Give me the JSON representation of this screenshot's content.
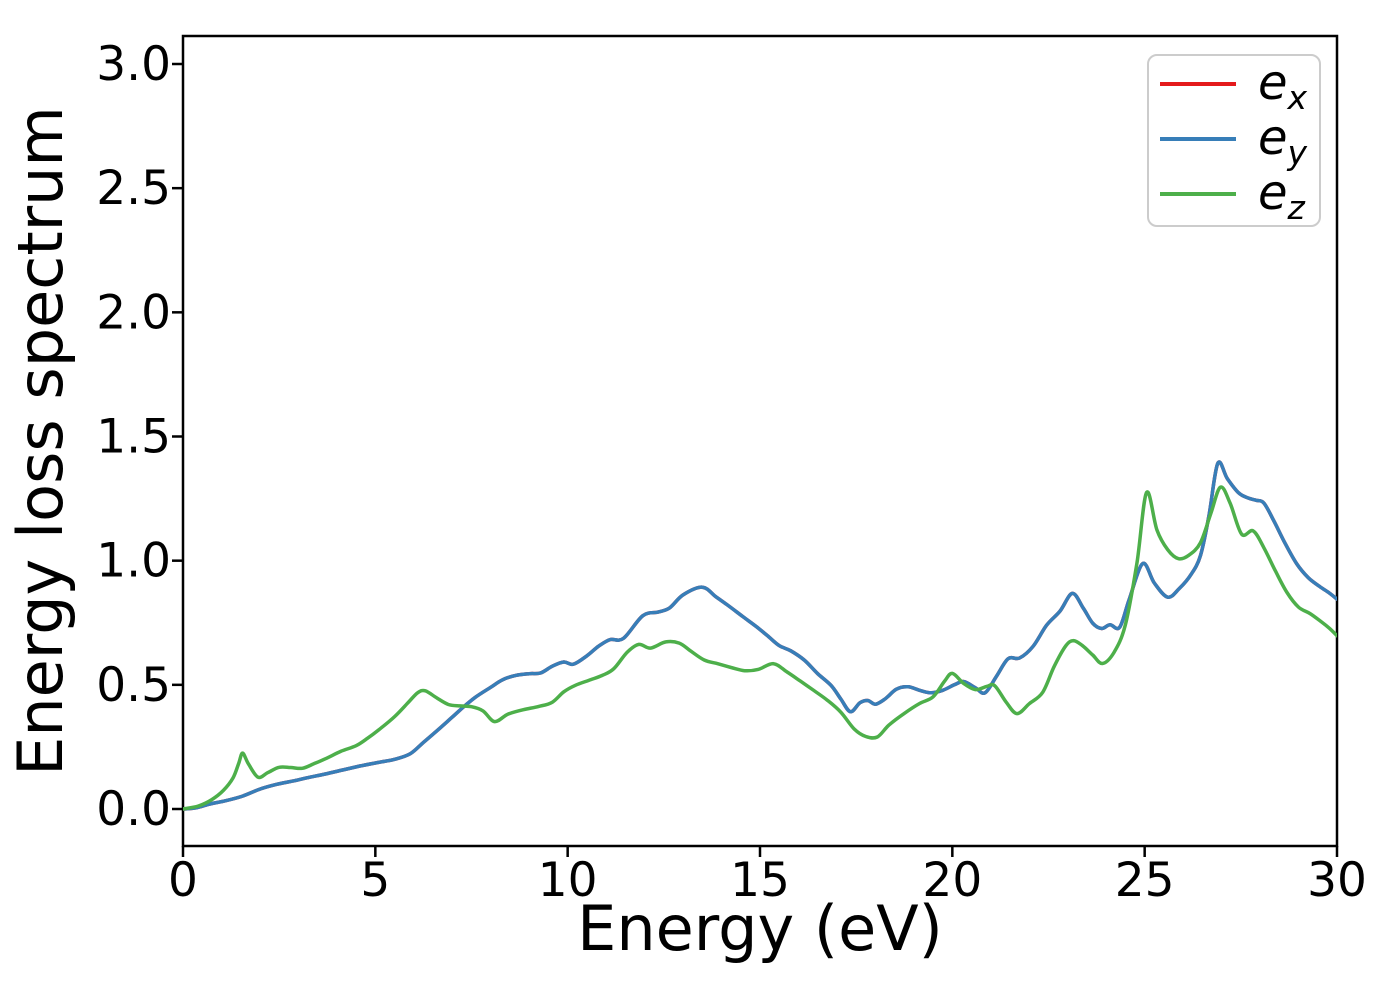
{
  "window": {
    "background": "#ffffff"
  },
  "chart_data": {
    "type": "line",
    "title": "",
    "xlabel": "Energy (eV)",
    "ylabel": "Energy loss spectrum",
    "xlim": [
      0,
      30
    ],
    "ylim": [
      -0.15,
      3.11
    ],
    "xticks": [
      0,
      5,
      10,
      15,
      20,
      25,
      30
    ],
    "yticks": [
      0.0,
      0.5,
      1.0,
      1.5,
      2.0,
      2.5,
      3.0
    ],
    "ytick_labels": [
      "0.0",
      "0.5",
      "1.0",
      "1.5",
      "2.0",
      "2.5",
      "3.0"
    ],
    "grid": false,
    "legend": {
      "position": "upper right",
      "entries": [
        {
          "base": "e",
          "sub": "x",
          "color": "#e41a1c"
        },
        {
          "base": "e",
          "sub": "y",
          "color": "#377eb8"
        },
        {
          "base": "e",
          "sub": "z",
          "color": "#4daf4a"
        }
      ]
    },
    "series": [
      {
        "name": "e_x",
        "color": "#e41a1c",
        "note": "coincides with e_y and is hidden beneath it in the plot",
        "points": [
          [
            0,
            0
          ],
          [
            0.35,
            0.005
          ],
          [
            0.7,
            0.02
          ],
          [
            1.1,
            0.033
          ],
          [
            1.55,
            0.052
          ],
          [
            2.0,
            0.08
          ],
          [
            2.45,
            0.1
          ],
          [
            2.9,
            0.114
          ],
          [
            3.3,
            0.128
          ],
          [
            3.7,
            0.141
          ],
          [
            4.15,
            0.157
          ],
          [
            4.6,
            0.173
          ],
          [
            5.05,
            0.187
          ],
          [
            5.5,
            0.2
          ],
          [
            5.9,
            0.222
          ],
          [
            6.25,
            0.268
          ],
          [
            6.6,
            0.315
          ],
          [
            7.0,
            0.37
          ],
          [
            7.3,
            0.412
          ],
          [
            7.6,
            0.45
          ],
          [
            8.0,
            0.49
          ],
          [
            8.3,
            0.52
          ],
          [
            8.65,
            0.538
          ],
          [
            9.0,
            0.545
          ],
          [
            9.3,
            0.548
          ],
          [
            9.6,
            0.575
          ],
          [
            9.9,
            0.592
          ],
          [
            10.15,
            0.583
          ],
          [
            10.5,
            0.617
          ],
          [
            10.8,
            0.655
          ],
          [
            11.1,
            0.682
          ],
          [
            11.45,
            0.687
          ],
          [
            11.95,
            0.778
          ],
          [
            12.35,
            0.793
          ],
          [
            12.65,
            0.81
          ],
          [
            13.0,
            0.862
          ],
          [
            13.5,
            0.893
          ],
          [
            13.85,
            0.855
          ],
          [
            14.15,
            0.822
          ],
          [
            14.55,
            0.775
          ],
          [
            14.9,
            0.735
          ],
          [
            15.2,
            0.697
          ],
          [
            15.5,
            0.658
          ],
          [
            15.8,
            0.637
          ],
          [
            16.15,
            0.6
          ],
          [
            16.5,
            0.545
          ],
          [
            16.85,
            0.497
          ],
          [
            17.1,
            0.443
          ],
          [
            17.35,
            0.392
          ],
          [
            17.6,
            0.428
          ],
          [
            17.8,
            0.437
          ],
          [
            18.0,
            0.422
          ],
          [
            18.25,
            0.443
          ],
          [
            18.55,
            0.483
          ],
          [
            18.85,
            0.492
          ],
          [
            19.15,
            0.478
          ],
          [
            19.45,
            0.468
          ],
          [
            19.75,
            0.478
          ],
          [
            20.05,
            0.5
          ],
          [
            20.3,
            0.513
          ],
          [
            20.6,
            0.488
          ],
          [
            20.85,
            0.468
          ],
          [
            21.15,
            0.535
          ],
          [
            21.45,
            0.605
          ],
          [
            21.75,
            0.608
          ],
          [
            22.1,
            0.655
          ],
          [
            22.45,
            0.74
          ],
          [
            22.8,
            0.797
          ],
          [
            23.12,
            0.868
          ],
          [
            23.4,
            0.81
          ],
          [
            23.65,
            0.748
          ],
          [
            23.88,
            0.727
          ],
          [
            24.1,
            0.742
          ],
          [
            24.35,
            0.732
          ],
          [
            24.6,
            0.845
          ],
          [
            24.95,
            0.988
          ],
          [
            25.25,
            0.91
          ],
          [
            25.6,
            0.853
          ],
          [
            25.9,
            0.888
          ],
          [
            26.2,
            0.943
          ],
          [
            26.45,
            1.02
          ],
          [
            26.67,
            1.18
          ],
          [
            26.9,
            1.392
          ],
          [
            27.15,
            1.33
          ],
          [
            27.45,
            1.272
          ],
          [
            27.7,
            1.252
          ],
          [
            27.9,
            1.243
          ],
          [
            28.1,
            1.232
          ],
          [
            28.35,
            1.163
          ],
          [
            28.65,
            1.07
          ],
          [
            28.95,
            0.988
          ],
          [
            29.25,
            0.932
          ],
          [
            29.55,
            0.896
          ],
          [
            29.8,
            0.87
          ],
          [
            30,
            0.845
          ]
        ]
      },
      {
        "name": "e_y",
        "color": "#377eb8",
        "points": [
          [
            0,
            0
          ],
          [
            0.35,
            0.005
          ],
          [
            0.7,
            0.02
          ],
          [
            1.1,
            0.033
          ],
          [
            1.55,
            0.052
          ],
          [
            2.0,
            0.08
          ],
          [
            2.45,
            0.1
          ],
          [
            2.9,
            0.114
          ],
          [
            3.3,
            0.128
          ],
          [
            3.7,
            0.141
          ],
          [
            4.15,
            0.157
          ],
          [
            4.6,
            0.173
          ],
          [
            5.05,
            0.187
          ],
          [
            5.5,
            0.2
          ],
          [
            5.9,
            0.222
          ],
          [
            6.25,
            0.268
          ],
          [
            6.6,
            0.315
          ],
          [
            7.0,
            0.37
          ],
          [
            7.3,
            0.412
          ],
          [
            7.6,
            0.45
          ],
          [
            8.0,
            0.49
          ],
          [
            8.3,
            0.52
          ],
          [
            8.65,
            0.538
          ],
          [
            9.0,
            0.545
          ],
          [
            9.3,
            0.548
          ],
          [
            9.6,
            0.575
          ],
          [
            9.9,
            0.592
          ],
          [
            10.15,
            0.583
          ],
          [
            10.5,
            0.617
          ],
          [
            10.8,
            0.655
          ],
          [
            11.1,
            0.682
          ],
          [
            11.45,
            0.687
          ],
          [
            11.95,
            0.778
          ],
          [
            12.35,
            0.793
          ],
          [
            12.65,
            0.81
          ],
          [
            13.0,
            0.862
          ],
          [
            13.5,
            0.893
          ],
          [
            13.85,
            0.855
          ],
          [
            14.15,
            0.822
          ],
          [
            14.55,
            0.775
          ],
          [
            14.9,
            0.735
          ],
          [
            15.2,
            0.697
          ],
          [
            15.5,
            0.658
          ],
          [
            15.8,
            0.637
          ],
          [
            16.15,
            0.6
          ],
          [
            16.5,
            0.545
          ],
          [
            16.85,
            0.497
          ],
          [
            17.1,
            0.443
          ],
          [
            17.35,
            0.392
          ],
          [
            17.6,
            0.428
          ],
          [
            17.8,
            0.437
          ],
          [
            18.0,
            0.422
          ],
          [
            18.25,
            0.443
          ],
          [
            18.55,
            0.483
          ],
          [
            18.85,
            0.492
          ],
          [
            19.15,
            0.478
          ],
          [
            19.45,
            0.468
          ],
          [
            19.75,
            0.478
          ],
          [
            20.05,
            0.5
          ],
          [
            20.3,
            0.513
          ],
          [
            20.6,
            0.488
          ],
          [
            20.85,
            0.468
          ],
          [
            21.15,
            0.535
          ],
          [
            21.45,
            0.605
          ],
          [
            21.75,
            0.608
          ],
          [
            22.1,
            0.655
          ],
          [
            22.45,
            0.74
          ],
          [
            22.8,
            0.797
          ],
          [
            23.12,
            0.868
          ],
          [
            23.4,
            0.81
          ],
          [
            23.65,
            0.748
          ],
          [
            23.88,
            0.727
          ],
          [
            24.1,
            0.742
          ],
          [
            24.35,
            0.732
          ],
          [
            24.6,
            0.845
          ],
          [
            24.95,
            0.988
          ],
          [
            25.25,
            0.91
          ],
          [
            25.6,
            0.853
          ],
          [
            25.9,
            0.888
          ],
          [
            26.2,
            0.943
          ],
          [
            26.45,
            1.02
          ],
          [
            26.67,
            1.18
          ],
          [
            26.9,
            1.392
          ],
          [
            27.15,
            1.33
          ],
          [
            27.45,
            1.272
          ],
          [
            27.7,
            1.252
          ],
          [
            27.9,
            1.243
          ],
          [
            28.1,
            1.232
          ],
          [
            28.35,
            1.163
          ],
          [
            28.65,
            1.07
          ],
          [
            28.95,
            0.988
          ],
          [
            29.25,
            0.932
          ],
          [
            29.55,
            0.896
          ],
          [
            29.8,
            0.87
          ],
          [
            30,
            0.845
          ]
        ]
      },
      {
        "name": "e_z",
        "color": "#4daf4a",
        "points": [
          [
            0,
            0
          ],
          [
            0.4,
            0.012
          ],
          [
            0.75,
            0.038
          ],
          [
            1.05,
            0.075
          ],
          [
            1.3,
            0.125
          ],
          [
            1.45,
            0.185
          ],
          [
            1.55,
            0.225
          ],
          [
            1.7,
            0.182
          ],
          [
            1.95,
            0.128
          ],
          [
            2.2,
            0.146
          ],
          [
            2.5,
            0.168
          ],
          [
            2.8,
            0.167
          ],
          [
            3.1,
            0.164
          ],
          [
            3.4,
            0.182
          ],
          [
            3.7,
            0.202
          ],
          [
            4.1,
            0.232
          ],
          [
            4.5,
            0.255
          ],
          [
            4.8,
            0.285
          ],
          [
            5.1,
            0.32
          ],
          [
            5.5,
            0.372
          ],
          [
            5.85,
            0.428
          ],
          [
            6.1,
            0.468
          ],
          [
            6.3,
            0.476
          ],
          [
            6.6,
            0.447
          ],
          [
            6.9,
            0.421
          ],
          [
            7.2,
            0.415
          ],
          [
            7.5,
            0.412
          ],
          [
            7.8,
            0.395
          ],
          [
            8.1,
            0.352
          ],
          [
            8.45,
            0.382
          ],
          [
            8.85,
            0.4
          ],
          [
            9.25,
            0.413
          ],
          [
            9.6,
            0.43
          ],
          [
            9.9,
            0.472
          ],
          [
            10.2,
            0.498
          ],
          [
            10.55,
            0.518
          ],
          [
            10.9,
            0.538
          ],
          [
            11.2,
            0.565
          ],
          [
            11.55,
            0.632
          ],
          [
            11.85,
            0.663
          ],
          [
            12.15,
            0.648
          ],
          [
            12.55,
            0.673
          ],
          [
            12.9,
            0.668
          ],
          [
            13.2,
            0.636
          ],
          [
            13.55,
            0.6
          ],
          [
            13.9,
            0.585
          ],
          [
            14.25,
            0.57
          ],
          [
            14.6,
            0.557
          ],
          [
            14.95,
            0.562
          ],
          [
            15.35,
            0.585
          ],
          [
            15.7,
            0.552
          ],
          [
            16.05,
            0.515
          ],
          [
            16.4,
            0.477
          ],
          [
            16.75,
            0.438
          ],
          [
            17.1,
            0.39
          ],
          [
            17.45,
            0.322
          ],
          [
            17.75,
            0.292
          ],
          [
            18.05,
            0.29
          ],
          [
            18.35,
            0.338
          ],
          [
            18.75,
            0.385
          ],
          [
            19.15,
            0.425
          ],
          [
            19.5,
            0.452
          ],
          [
            19.8,
            0.515
          ],
          [
            20.0,
            0.546
          ],
          [
            20.3,
            0.505
          ],
          [
            20.6,
            0.481
          ],
          [
            20.9,
            0.494
          ],
          [
            21.1,
            0.497
          ],
          [
            21.4,
            0.43
          ],
          [
            21.68,
            0.384
          ],
          [
            22.0,
            0.424
          ],
          [
            22.35,
            0.47
          ],
          [
            22.65,
            0.575
          ],
          [
            22.95,
            0.657
          ],
          [
            23.15,
            0.678
          ],
          [
            23.38,
            0.658
          ],
          [
            23.65,
            0.62
          ],
          [
            23.9,
            0.586
          ],
          [
            24.2,
            0.63
          ],
          [
            24.5,
            0.742
          ],
          [
            24.8,
            0.992
          ],
          [
            25.05,
            1.275
          ],
          [
            25.32,
            1.123
          ],
          [
            25.6,
            1.044
          ],
          [
            25.88,
            1.008
          ],
          [
            26.15,
            1.022
          ],
          [
            26.45,
            1.072
          ],
          [
            26.72,
            1.19
          ],
          [
            26.97,
            1.296
          ],
          [
            27.22,
            1.232
          ],
          [
            27.52,
            1.107
          ],
          [
            27.82,
            1.12
          ],
          [
            28.1,
            1.052
          ],
          [
            28.4,
            0.958
          ],
          [
            28.7,
            0.872
          ],
          [
            29.0,
            0.813
          ],
          [
            29.3,
            0.787
          ],
          [
            29.6,
            0.753
          ],
          [
            29.8,
            0.728
          ],
          [
            30,
            0.698
          ]
        ]
      }
    ]
  }
}
